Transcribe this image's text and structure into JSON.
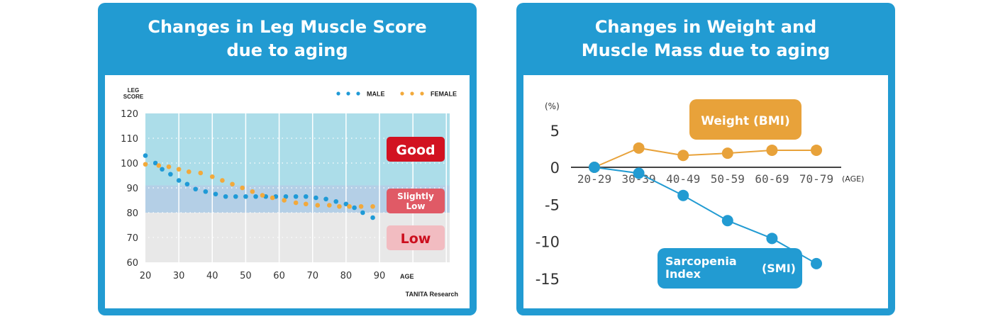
{
  "colors": {
    "panel_blue": "#229bd2",
    "male": "#1f9ad6",
    "female": "#f2a93b",
    "band_good": "#acdde9",
    "band_slightly_low": "#b4cfe6",
    "band_low": "#e8e8e8",
    "good_badge": "#d21221",
    "slightly_low_badge": "#e05a66",
    "low_badge": "#f2bcc1",
    "low_text": "#cc0f1e",
    "weight": "#e8a23a",
    "smi": "#229bd2"
  },
  "left_panel": {
    "title_line1": "Changes in Leg Muscle Score",
    "title_line2": "due to aging",
    "badges": {
      "good": "Good",
      "slightly_low_line1": "Slightly",
      "slightly_low_line2": "Low",
      "low": "Low"
    },
    "source": "TANITA Research"
  },
  "right_panel": {
    "title_line1": "Changes in Weight and",
    "title_line2": "Muscle Mass due to aging",
    "weight_label": "Weight (BMI)",
    "smi_label_line1": "Sarcopenia",
    "smi_label_line2": "Index",
    "smi_label_abbr": "(SMI)"
  },
  "chart_data": [
    {
      "type": "scatter",
      "title": "Changes in Leg Muscle Score due to aging",
      "xlabel": "AGE",
      "ylabel_line1": "LEG",
      "ylabel_line2": "SCORE",
      "xlim": [
        20,
        111
      ],
      "ylim": [
        60,
        120
      ],
      "x_ticks": [
        "20",
        "30",
        "40",
        "50",
        "60",
        "70",
        "80",
        "90"
      ],
      "y_ticks": [
        "120",
        "110",
        "100",
        "90",
        "80",
        "70",
        "60"
      ],
      "grid": true,
      "legend": {
        "position": "top-right",
        "male": "MALE",
        "female": "FEMALE"
      },
      "zones": [
        {
          "name": "Good",
          "from": 91,
          "to": 120
        },
        {
          "name": "Slightly Low",
          "from": 80,
          "to": 91
        },
        {
          "name": "Low",
          "from": 60,
          "to": 80
        }
      ],
      "series": [
        {
          "name": "MALE",
          "x": [
            20,
            23,
            25,
            27.5,
            30,
            32.5,
            35,
            38,
            41,
            44,
            47,
            50,
            53,
            56,
            59,
            62,
            65,
            68,
            71,
            74,
            77,
            80,
            82.5,
            85,
            88
          ],
          "values": [
            103,
            100,
            97.5,
            95.5,
            93,
            91.5,
            89.5,
            88.5,
            87.5,
            86.5,
            86.5,
            86.5,
            86.5,
            86.5,
            86.5,
            86.5,
            86.5,
            86.5,
            86,
            85.5,
            84.5,
            83.5,
            82,
            80,
            78
          ]
        },
        {
          "name": "FEMALE",
          "x": [
            20,
            24,
            27,
            30,
            33,
            36.5,
            40,
            43,
            46,
            49,
            52,
            55,
            58,
            61.5,
            65,
            68,
            71.5,
            75,
            78,
            81,
            84.5,
            88
          ],
          "values": [
            99.5,
            99,
            98.5,
            97.5,
            96.5,
            96,
            94.5,
            93,
            91.5,
            90,
            88.5,
            87,
            86,
            85,
            84,
            83.5,
            83,
            83,
            82.5,
            82.5,
            82.5,
            82.5
          ]
        }
      ]
    },
    {
      "type": "line",
      "title": "Changes in Weight and Muscle Mass due to aging",
      "ylabel": "(%)",
      "xlabel": "(AGE)",
      "categories": [
        "20-29",
        "30-39",
        "40-49",
        "50-59",
        "60-69",
        "70-79"
      ],
      "y_ticks": [
        "5",
        "0",
        "-5",
        "-10",
        "-15"
      ],
      "ylim": [
        -15,
        5
      ],
      "series": [
        {
          "name": "Weight (BMI)",
          "values": [
            0,
            2.6,
            1.6,
            1.9,
            2.3,
            2.3
          ]
        },
        {
          "name": "Sarcopenia Index (SMI)",
          "values": [
            0,
            -0.8,
            -3.8,
            -7.2,
            -9.6,
            -13.0
          ]
        }
      ]
    }
  ]
}
